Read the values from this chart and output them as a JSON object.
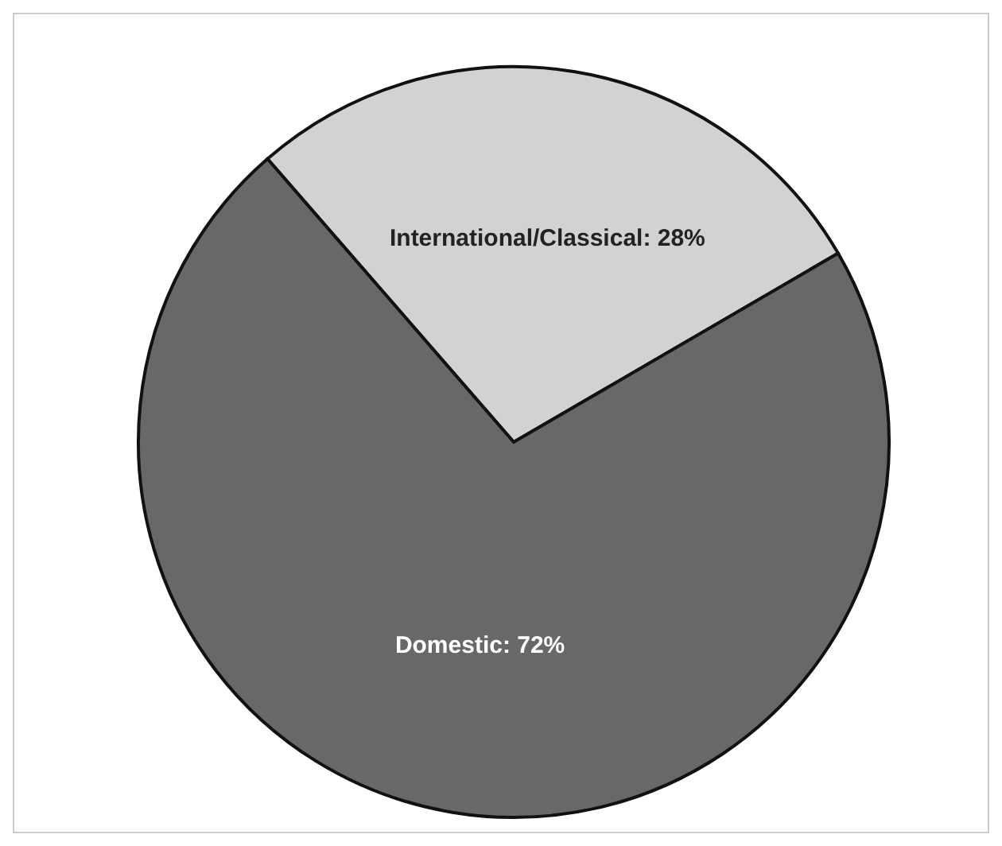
{
  "chart_data": {
    "type": "pie",
    "categories": [
      "International/Classical",
      "Domestic"
    ],
    "values": [
      28,
      72
    ],
    "colors": [
      "#d2d2d2",
      "#686868"
    ],
    "value_labels": [
      "28%",
      "72%"
    ]
  }
}
